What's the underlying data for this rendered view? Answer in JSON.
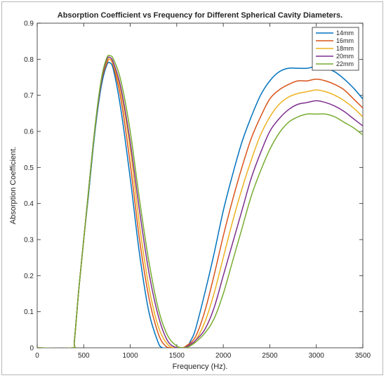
{
  "chart_data": {
    "type": "line",
    "title": "Absorption Coefficient vs Frequency for Different Spherical Cavity Diameters.",
    "xlabel": "Frequency (Hz).",
    "ylabel": "Absorption Coefficient.",
    "xlim": [
      0,
      3500
    ],
    "ylim": [
      0,
      0.9
    ],
    "xticks": [
      0,
      500,
      1000,
      1500,
      2000,
      2500,
      3000,
      3500
    ],
    "yticks": [
      0,
      0.1,
      0.2,
      0.3,
      0.4,
      0.5,
      0.6,
      0.7,
      0.8,
      0.9
    ],
    "grid": false,
    "legend_position": "top-right",
    "series": [
      {
        "name": "14mm",
        "color": "#0072BD",
        "points": [
          [
            0,
            0
          ],
          [
            380,
            0
          ],
          [
            400,
            0.02
          ],
          [
            450,
            0.17
          ],
          [
            500,
            0.3
          ],
          [
            550,
            0.42
          ],
          [
            600,
            0.55
          ],
          [
            650,
            0.66
          ],
          [
            700,
            0.74
          ],
          [
            750,
            0.785
          ],
          [
            780,
            0.79
          ],
          [
            820,
            0.77
          ],
          [
            900,
            0.66
          ],
          [
            1000,
            0.47
          ],
          [
            1100,
            0.26
          ],
          [
            1200,
            0.1
          ],
          [
            1300,
            0.015
          ],
          [
            1350,
            0
          ],
          [
            1400,
            0
          ],
          [
            1500,
            0
          ],
          [
            1600,
            0
          ],
          [
            1650,
            0.02
          ],
          [
            1700,
            0.05
          ],
          [
            1800,
            0.15
          ],
          [
            1900,
            0.26
          ],
          [
            2000,
            0.38
          ],
          [
            2100,
            0.48
          ],
          [
            2200,
            0.57
          ],
          [
            2300,
            0.64
          ],
          [
            2400,
            0.7
          ],
          [
            2500,
            0.74
          ],
          [
            2600,
            0.765
          ],
          [
            2700,
            0.775
          ],
          [
            2800,
            0.775
          ],
          [
            2900,
            0.775
          ],
          [
            3000,
            0.78
          ],
          [
            3100,
            0.775
          ],
          [
            3200,
            0.765
          ],
          [
            3300,
            0.745
          ],
          [
            3400,
            0.72
          ],
          [
            3500,
            0.69
          ]
        ]
      },
      {
        "name": "16mm",
        "color": "#D95319",
        "points": [
          [
            0,
            0
          ],
          [
            380,
            0
          ],
          [
            400,
            0.02
          ],
          [
            450,
            0.17
          ],
          [
            500,
            0.3
          ],
          [
            550,
            0.43
          ],
          [
            600,
            0.56
          ],
          [
            650,
            0.67
          ],
          [
            700,
            0.75
          ],
          [
            750,
            0.79
          ],
          [
            780,
            0.8
          ],
          [
            820,
            0.78
          ],
          [
            900,
            0.69
          ],
          [
            1000,
            0.51
          ],
          [
            1100,
            0.3
          ],
          [
            1200,
            0.14
          ],
          [
            1300,
            0.04
          ],
          [
            1380,
            0.005
          ],
          [
            1450,
            0
          ],
          [
            1550,
            0
          ],
          [
            1600,
            0.005
          ],
          [
            1700,
            0.03
          ],
          [
            1800,
            0.1
          ],
          [
            1900,
            0.2
          ],
          [
            2000,
            0.31
          ],
          [
            2100,
            0.41
          ],
          [
            2200,
            0.5
          ],
          [
            2300,
            0.58
          ],
          [
            2400,
            0.64
          ],
          [
            2500,
            0.69
          ],
          [
            2600,
            0.715
          ],
          [
            2700,
            0.73
          ],
          [
            2800,
            0.74
          ],
          [
            2900,
            0.74
          ],
          [
            3000,
            0.745
          ],
          [
            3100,
            0.74
          ],
          [
            3200,
            0.73
          ],
          [
            3300,
            0.715
          ],
          [
            3400,
            0.69
          ],
          [
            3500,
            0.665
          ]
        ]
      },
      {
        "name": "18mm",
        "color": "#EDB120",
        "points": [
          [
            0,
            0
          ],
          [
            380,
            0
          ],
          [
            400,
            0.02
          ],
          [
            450,
            0.17
          ],
          [
            500,
            0.3
          ],
          [
            550,
            0.43
          ],
          [
            600,
            0.56
          ],
          [
            650,
            0.67
          ],
          [
            700,
            0.755
          ],
          [
            750,
            0.795
          ],
          [
            780,
            0.8
          ],
          [
            820,
            0.785
          ],
          [
            900,
            0.71
          ],
          [
            1000,
            0.55
          ],
          [
            1100,
            0.34
          ],
          [
            1200,
            0.17
          ],
          [
            1300,
            0.06
          ],
          [
            1400,
            0.01
          ],
          [
            1480,
            0
          ],
          [
            1560,
            0
          ],
          [
            1620,
            0.005
          ],
          [
            1700,
            0.02
          ],
          [
            1800,
            0.07
          ],
          [
            1900,
            0.15
          ],
          [
            2000,
            0.25
          ],
          [
            2100,
            0.35
          ],
          [
            2200,
            0.44
          ],
          [
            2300,
            0.52
          ],
          [
            2400,
            0.59
          ],
          [
            2500,
            0.64
          ],
          [
            2600,
            0.675
          ],
          [
            2700,
            0.695
          ],
          [
            2800,
            0.705
          ],
          [
            2900,
            0.71
          ],
          [
            3000,
            0.715
          ],
          [
            3100,
            0.71
          ],
          [
            3200,
            0.7
          ],
          [
            3300,
            0.685
          ],
          [
            3400,
            0.665
          ],
          [
            3500,
            0.64
          ]
        ]
      },
      {
        "name": "20mm",
        "color": "#7E2F8E",
        "points": [
          [
            0,
            0
          ],
          [
            380,
            0
          ],
          [
            400,
            0.02
          ],
          [
            450,
            0.17
          ],
          [
            500,
            0.3
          ],
          [
            550,
            0.43
          ],
          [
            600,
            0.56
          ],
          [
            650,
            0.67
          ],
          [
            700,
            0.755
          ],
          [
            750,
            0.8
          ],
          [
            780,
            0.805
          ],
          [
            820,
            0.79
          ],
          [
            900,
            0.72
          ],
          [
            1000,
            0.57
          ],
          [
            1100,
            0.38
          ],
          [
            1200,
            0.21
          ],
          [
            1300,
            0.09
          ],
          [
            1400,
            0.02
          ],
          [
            1500,
            0
          ],
          [
            1580,
            0
          ],
          [
            1650,
            0.01
          ],
          [
            1700,
            0.02
          ],
          [
            1800,
            0.05
          ],
          [
            1900,
            0.11
          ],
          [
            2000,
            0.2
          ],
          [
            2100,
            0.29
          ],
          [
            2200,
            0.38
          ],
          [
            2300,
            0.47
          ],
          [
            2400,
            0.54
          ],
          [
            2500,
            0.6
          ],
          [
            2600,
            0.635
          ],
          [
            2700,
            0.66
          ],
          [
            2800,
            0.675
          ],
          [
            2900,
            0.68
          ],
          [
            3000,
            0.685
          ],
          [
            3100,
            0.68
          ],
          [
            3200,
            0.67
          ],
          [
            3300,
            0.655
          ],
          [
            3400,
            0.635
          ],
          [
            3500,
            0.615
          ]
        ]
      },
      {
        "name": "22mm",
        "color": "#77AC30",
        "points": [
          [
            0,
            0
          ],
          [
            380,
            0
          ],
          [
            400,
            0.02
          ],
          [
            450,
            0.17
          ],
          [
            500,
            0.3
          ],
          [
            550,
            0.43
          ],
          [
            600,
            0.56
          ],
          [
            650,
            0.675
          ],
          [
            700,
            0.76
          ],
          [
            750,
            0.805
          ],
          [
            780,
            0.81
          ],
          [
            820,
            0.8
          ],
          [
            900,
            0.74
          ],
          [
            1000,
            0.6
          ],
          [
            1100,
            0.41
          ],
          [
            1200,
            0.24
          ],
          [
            1300,
            0.11
          ],
          [
            1400,
            0.035
          ],
          [
            1500,
            0.005
          ],
          [
            1570,
            0
          ],
          [
            1620,
            0.002
          ],
          [
            1700,
            0.015
          ],
          [
            1800,
            0.04
          ],
          [
            1900,
            0.08
          ],
          [
            2000,
            0.15
          ],
          [
            2100,
            0.24
          ],
          [
            2200,
            0.33
          ],
          [
            2300,
            0.42
          ],
          [
            2400,
            0.49
          ],
          [
            2500,
            0.55
          ],
          [
            2600,
            0.595
          ],
          [
            2700,
            0.625
          ],
          [
            2800,
            0.64
          ],
          [
            2900,
            0.648
          ],
          [
            3000,
            0.648
          ],
          [
            3100,
            0.648
          ],
          [
            3200,
            0.64
          ],
          [
            3300,
            0.625
          ],
          [
            3400,
            0.61
          ],
          [
            3500,
            0.59
          ]
        ]
      }
    ]
  }
}
